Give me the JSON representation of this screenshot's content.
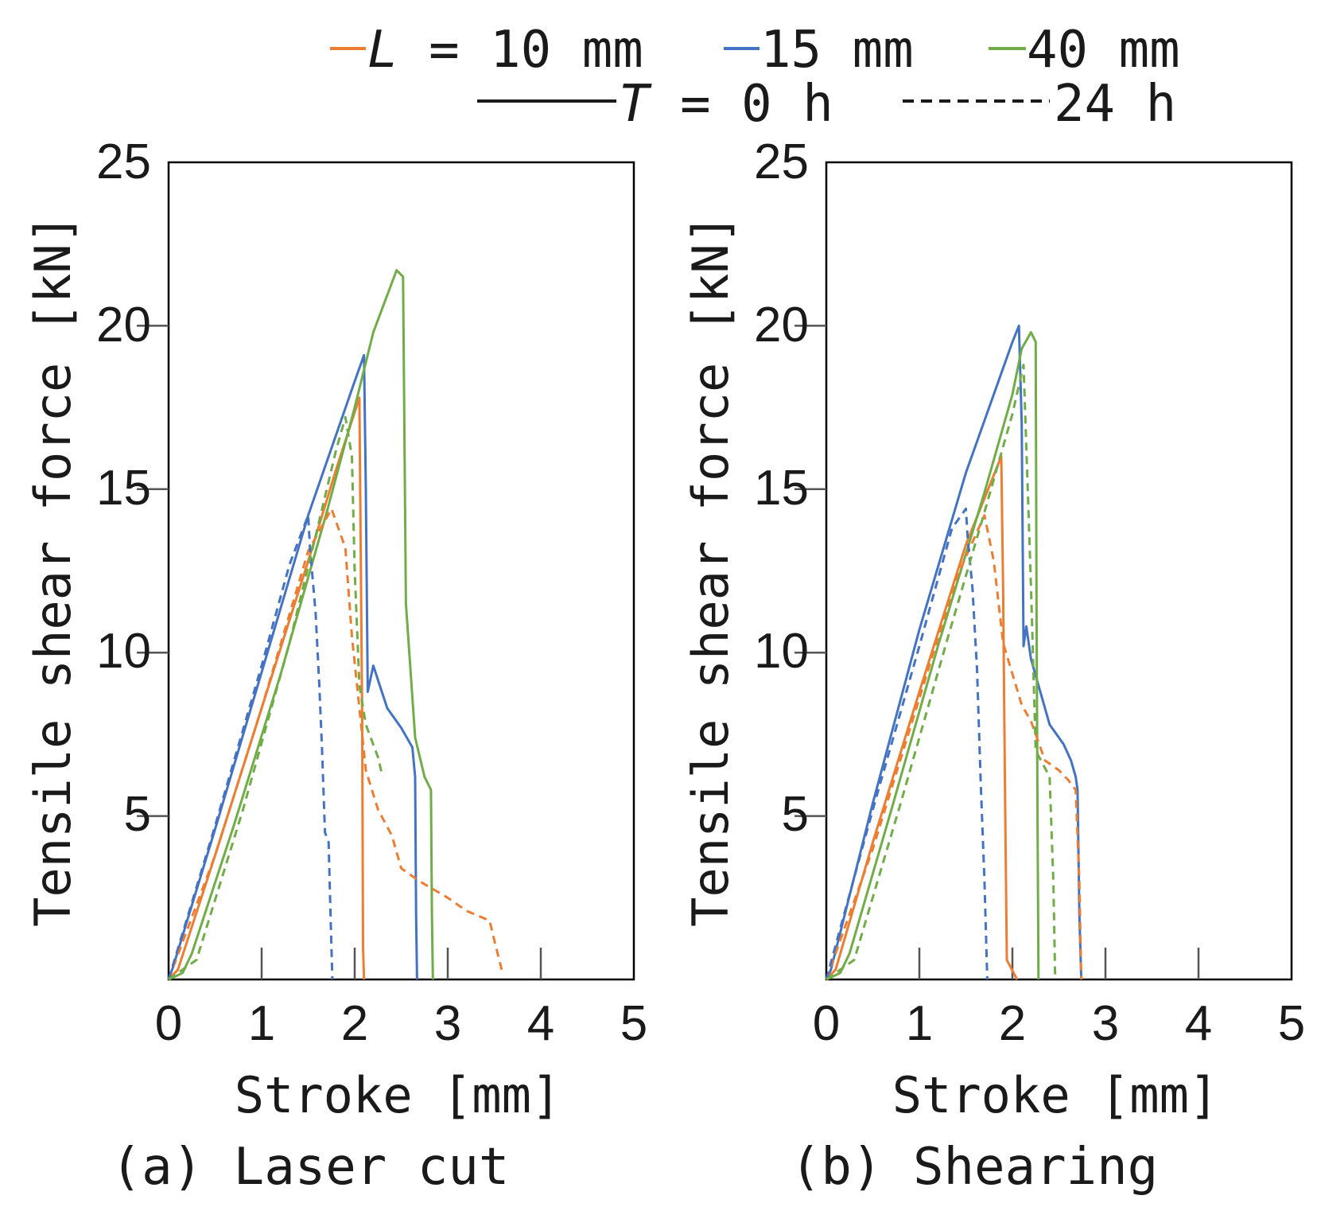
{
  "chart_data": {
    "type": "line",
    "shared": {
      "xlabel": "Stroke [mm]",
      "ylabel": "Tensile shear force [kN]",
      "xlim": [
        0,
        5
      ],
      "ylim": [
        0,
        25
      ],
      "xticks": [
        0,
        1,
        2,
        3,
        4,
        5
      ],
      "yticks": [
        5,
        10,
        15,
        20,
        25
      ],
      "grid": false
    },
    "colors": {
      "L10": "#ed7d31",
      "L15": "#4472c4",
      "L40": "#70ad47",
      "neutral": "#1a1a1a"
    },
    "legend": {
      "row1": [
        {
          "key": "L10",
          "label_var": "L",
          "label_text": " = 10 mm"
        },
        {
          "key": "L15",
          "label_text": "15 mm"
        },
        {
          "key": "L40",
          "label_text": "40 mm"
        }
      ],
      "row2": [
        {
          "style": "solid",
          "label_var": "T",
          "label_text": " = 0 h"
        },
        {
          "style": "dashed",
          "label_text": "24 h"
        }
      ]
    },
    "panels": [
      {
        "caption": "(a) Laser cut",
        "series": [
          {
            "name": "L = 10 mm, T = 0 h",
            "color_key": "L10",
            "dash": false,
            "points": [
              [
                0,
                0
              ],
              [
                0.1,
                0.3
              ],
              [
                0.5,
                3.8
              ],
              [
                1.0,
                8.3
              ],
              [
                1.5,
                12.8
              ],
              [
                1.8,
                15.6
              ],
              [
                2.05,
                17.8
              ],
              [
                2.08,
                8
              ],
              [
                2.09,
                1
              ],
              [
                2.1,
                0
              ]
            ]
          },
          {
            "name": "L = 15 mm, T = 0 h",
            "color_key": "L15",
            "dash": false,
            "points": [
              [
                0,
                0
              ],
              [
                0.05,
                0.4
              ],
              [
                0.5,
                4.6
              ],
              [
                1.0,
                9.4
              ],
              [
                1.5,
                14.2
              ],
              [
                2.0,
                18.3
              ],
              [
                2.1,
                19.1
              ],
              [
                2.12,
                15
              ],
              [
                2.14,
                8.8
              ],
              [
                2.2,
                9.6
              ],
              [
                2.28,
                8.9
              ],
              [
                2.35,
                8.3
              ],
              [
                2.5,
                7.7
              ],
              [
                2.62,
                7.1
              ],
              [
                2.65,
                6.2
              ],
              [
                2.66,
                2
              ],
              [
                2.67,
                0
              ]
            ]
          },
          {
            "name": "L = 40 mm, T = 0 h",
            "color_key": "L40",
            "dash": false,
            "points": [
              [
                0,
                0
              ],
              [
                0.15,
                0.2
              ],
              [
                0.25,
                0.8
              ],
              [
                0.7,
                4.7
              ],
              [
                1.2,
                9.3
              ],
              [
                1.7,
                14.3
              ],
              [
                2.0,
                17.5
              ],
              [
                2.2,
                19.8
              ],
              [
                2.45,
                21.7
              ],
              [
                2.52,
                21.5
              ],
              [
                2.55,
                11.5
              ],
              [
                2.65,
                7.4
              ],
              [
                2.75,
                6.2
              ],
              [
                2.82,
                5.8
              ],
              [
                2.83,
                2
              ],
              [
                2.84,
                0
              ]
            ]
          },
          {
            "name": "L = 10 mm, T = 24 h",
            "color_key": "L10",
            "dash": true,
            "points": [
              [
                0,
                0
              ],
              [
                0.5,
                3.8
              ],
              [
                1.0,
                8.3
              ],
              [
                1.5,
                13.1
              ],
              [
                1.75,
                14.4
              ],
              [
                1.9,
                13.2
              ],
              [
                1.97,
                10.5
              ],
              [
                2.05,
                8.3
              ],
              [
                2.12,
                6.4
              ],
              [
                2.25,
                5.2
              ],
              [
                2.4,
                4.4
              ],
              [
                2.5,
                3.4
              ],
              [
                2.7,
                3.0
              ],
              [
                3.0,
                2.5
              ],
              [
                3.2,
                2.1
              ],
              [
                3.45,
                1.8
              ],
              [
                3.5,
                1.2
              ],
              [
                3.58,
                0.3
              ]
            ]
          },
          {
            "name": "L = 15 mm, T = 24 h",
            "color_key": "L15",
            "dash": true,
            "points": [
              [
                0,
                0
              ],
              [
                0.5,
                4.7
              ],
              [
                1.0,
                9.6
              ],
              [
                1.3,
                12.7
              ],
              [
                1.5,
                14.2
              ],
              [
                1.52,
                13.2
              ],
              [
                1.58,
                11.2
              ],
              [
                1.62,
                9
              ],
              [
                1.65,
                7
              ],
              [
                1.68,
                4.5
              ],
              [
                1.72,
                4.2
              ],
              [
                1.74,
                2
              ],
              [
                1.76,
                0
              ]
            ]
          },
          {
            "name": "L = 40 mm, T = 24 h",
            "color_key": "L40",
            "dash": true,
            "points": [
              [
                0,
                0
              ],
              [
                0.3,
                0.6
              ],
              [
                0.8,
                5.2
              ],
              [
                1.3,
                10.3
              ],
              [
                1.6,
                13.8
              ],
              [
                1.8,
                16.2
              ],
              [
                1.9,
                17.2
              ],
              [
                1.97,
                16
              ],
              [
                2.0,
                12.5
              ],
              [
                2.05,
                9
              ],
              [
                2.12,
                7.8
              ],
              [
                2.25,
                6.8
              ],
              [
                2.3,
                6.2
              ]
            ]
          }
        ]
      },
      {
        "caption": "(b) Shearing",
        "series": [
          {
            "name": "L = 10 mm, T = 0 h",
            "color_key": "L10",
            "dash": false,
            "points": [
              [
                0,
                0
              ],
              [
                0.1,
                0.3
              ],
              [
                0.5,
                4.2
              ],
              [
                1.0,
                8.8
              ],
              [
                1.5,
                13.3
              ],
              [
                1.88,
                16
              ],
              [
                1.9,
                12
              ],
              [
                1.92,
                6
              ],
              [
                1.94,
                0.6
              ],
              [
                2.05,
                0
              ]
            ]
          },
          {
            "name": "L = 15 mm, T = 0 h",
            "color_key": "L15",
            "dash": false,
            "points": [
              [
                0,
                0
              ],
              [
                0.05,
                0.3
              ],
              [
                0.5,
                5.4
              ],
              [
                1.0,
                10.7
              ],
              [
                1.5,
                15.5
              ],
              [
                2.0,
                19.5
              ],
              [
                2.07,
                20
              ],
              [
                2.1,
                17
              ],
              [
                2.12,
                10.2
              ],
              [
                2.15,
                10.8
              ],
              [
                2.2,
                9.8
              ],
              [
                2.3,
                8.8
              ],
              [
                2.4,
                7.8
              ],
              [
                2.55,
                7.2
              ],
              [
                2.63,
                6.7
              ],
              [
                2.68,
                6.2
              ],
              [
                2.7,
                5.8
              ],
              [
                2.72,
                2
              ],
              [
                2.74,
                0
              ]
            ]
          },
          {
            "name": "L = 40 mm, T = 0 h",
            "color_key": "L40",
            "dash": false,
            "points": [
              [
                0,
                0
              ],
              [
                0.15,
                0.2
              ],
              [
                0.25,
                0.8
              ],
              [
                0.7,
                5.2
              ],
              [
                1.2,
                10.2
              ],
              [
                1.7,
                14.9
              ],
              [
                2.0,
                17.9
              ],
              [
                2.1,
                19.3
              ],
              [
                2.2,
                19.8
              ],
              [
                2.25,
                19.5
              ],
              [
                2.26,
                11
              ],
              [
                2.27,
                5
              ],
              [
                2.28,
                0
              ]
            ]
          },
          {
            "name": "L = 10 mm, T = 24 h",
            "color_key": "L10",
            "dash": true,
            "points": [
              [
                0,
                0
              ],
              [
                0.5,
                4.0
              ],
              [
                1.0,
                8.6
              ],
              [
                1.4,
                12.3
              ],
              [
                1.7,
                14.2
              ],
              [
                1.8,
                12.8
              ],
              [
                1.9,
                10.3
              ],
              [
                2.1,
                8.4
              ],
              [
                2.2,
                7.9
              ],
              [
                2.35,
                6.7
              ],
              [
                2.5,
                6.4
              ],
              [
                2.6,
                6.1
              ],
              [
                2.68,
                5.8
              ],
              [
                2.72,
                3
              ],
              [
                2.74,
                0
              ]
            ]
          },
          {
            "name": "L = 15 mm, T = 24 h",
            "color_key": "L15",
            "dash": true,
            "points": [
              [
                0,
                0
              ],
              [
                0.5,
                5.2
              ],
              [
                1.0,
                10.2
              ],
              [
                1.35,
                13.8
              ],
              [
                1.5,
                14.4
              ],
              [
                1.52,
                13.5
              ],
              [
                1.57,
                12
              ],
              [
                1.62,
                9.5
              ],
              [
                1.66,
                6
              ],
              [
                1.7,
                3
              ],
              [
                1.73,
                0
              ]
            ]
          },
          {
            "name": "L = 40 mm, T = 24 h",
            "color_key": "L40",
            "dash": true,
            "points": [
              [
                0,
                0
              ],
              [
                0.3,
                0.6
              ],
              [
                0.8,
                5.4
              ],
              [
                1.3,
                10.4
              ],
              [
                1.7,
                14.3
              ],
              [
                2.0,
                17.3
              ],
              [
                2.12,
                18.8
              ],
              [
                2.15,
                16.3
              ],
              [
                2.2,
                12
              ],
              [
                2.25,
                7
              ],
              [
                2.4,
                6.2
              ],
              [
                2.44,
                3
              ],
              [
                2.46,
                0
              ]
            ]
          }
        ]
      }
    ]
  }
}
